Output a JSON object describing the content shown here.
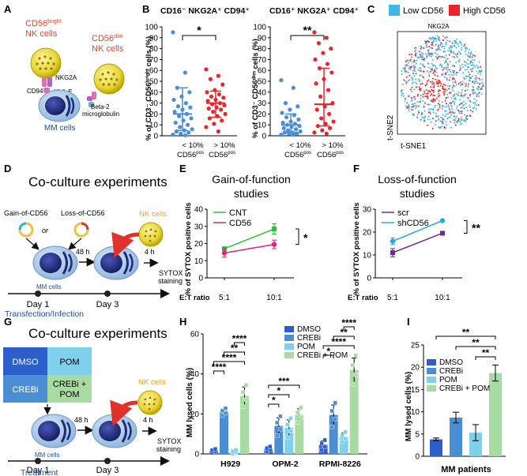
{
  "panels": {
    "A": {
      "label": "A",
      "nk_bright_line1": "CD56",
      "nk_bright_sup": "bright",
      "nk_bright_line2": "NK cells",
      "nk_dim_line1": "CD56",
      "nk_dim_sup": "dim",
      "nk_dim_line2": "NK cells",
      "nkg2a": "NKG2A",
      "cd94": "CD94",
      "hlae": "HLA-E",
      "beta2_line1": "Beta-2",
      "beta2_line2": "microglobulin",
      "mm_cells": "MM cells"
    },
    "B": {
      "label": "B",
      "ylabel_left": "% of CD3⁻ CD56ᵇʳⁱᵍʰᵗ cells (%)",
      "ylabel_right": "% of CD3⁻ CD56ᵈⁱᵐ cells (%)",
      "group1_line1": "< 10%",
      "group1_line2": "CD56",
      "group1_sup": "pos",
      "group2_line1": "> 10%",
      "group2_line2": "CD56",
      "group2_sup": "pos"
    },
    "C": {
      "label": "C",
      "legend_low": "Low CD56",
      "legend_high": "High CD56",
      "title": "NKG2A",
      "xaxis": "t-SNE1",
      "yaxis": "t-SNE2",
      "color_low": "#3fb8e8",
      "color_high": "#e8262b"
    },
    "D": {
      "label": "D",
      "title": "Co-culture experiments",
      "gain": "Gain-of-CD56",
      "loss": "Loss-of-CD56",
      "or": "or",
      "nk_cells": "NK cells",
      "mm_cells": "MM cells",
      "time1": "48 h",
      "time2": "4 h",
      "sytox1": "SYTOX",
      "sytox2": "staining",
      "day1": "Day 1",
      "day3": "Day 3",
      "caption": "Transfection/Infection"
    },
    "G": {
      "label": "G",
      "title": "Co-culture experiments",
      "box_dmso": "DMSO",
      "box_pom": "POM",
      "box_crebi": "CREBi",
      "box_combo1": "CREBi +",
      "box_combo2": "POM",
      "nk_cells": "NK cells",
      "mm_cells": "MM cells",
      "time1": "48 h",
      "time2": "4 h",
      "sytox1": "SYTOX",
      "sytox2": "staining",
      "day1": "Day 1",
      "day3": "Day 3",
      "caption": "Treatment"
    },
    "E": {
      "label": "E"
    },
    "F": {
      "label": "F"
    },
    "H": {
      "label": "H"
    },
    "I": {
      "label": "I"
    }
  },
  "chart_data": [
    {
      "id": "B_left",
      "type": "scatter",
      "title": "CD16⁻ NKG2A⁺ CD94⁺",
      "ylabel": "% of CD3⁻ CD56bright cells (%)",
      "categories": [
        "< 10% CD56pos",
        "> 10% CD56pos"
      ],
      "ylim": [
        0,
        100
      ],
      "yticks": [
        0,
        10,
        20,
        30,
        40,
        50,
        60,
        70,
        80,
        90,
        100
      ],
      "colors": [
        "#4a8fd6",
        "#e8262b"
      ],
      "significance": "*",
      "series": [
        {
          "name": "< 10% CD56pos",
          "median": 20,
          "q1": 5,
          "q3": 44,
          "points": [
            95,
            58,
            44,
            40,
            36,
            33,
            30,
            27,
            26,
            24,
            22,
            20,
            18,
            16,
            14,
            12,
            10,
            8,
            6,
            5,
            4,
            3,
            2,
            1,
            0.5
          ]
        },
        {
          "name": "> 10% CD56pos",
          "median": 30,
          "q1": 17,
          "q3": 41,
          "points": [
            61,
            55,
            52,
            47,
            42,
            40,
            38,
            36,
            35,
            33,
            32,
            30,
            29,
            28,
            26,
            25,
            24,
            22,
            20,
            18,
            16,
            14,
            11,
            8,
            4
          ]
        }
      ]
    },
    {
      "id": "B_right",
      "type": "scatter",
      "title": "CD16⁺ NKG2A⁺ CD94⁺",
      "ylabel": "% of CD3⁻ CD56dim cells (%)",
      "categories": [
        "< 10% CD56pos",
        "> 10% CD56pos"
      ],
      "ylim": [
        0,
        100
      ],
      "yticks": [
        0,
        10,
        20,
        30,
        40,
        50,
        60,
        70,
        80,
        90,
        100
      ],
      "colors": [
        "#4a8fd6",
        "#e8262b"
      ],
      "significance": "**",
      "series": [
        {
          "name": "< 10% CD56pos",
          "median": 10,
          "q1": 3,
          "q3": 20,
          "points": [
            51,
            44,
            30,
            27,
            24,
            21,
            19,
            17,
            15,
            13,
            12,
            11,
            10,
            9,
            8,
            7,
            6,
            5,
            4,
            3,
            3,
            2,
            2,
            1,
            1
          ]
        },
        {
          "name": "> 10% CD56pos",
          "median": 29,
          "q1": 9,
          "q3": 62,
          "points": [
            95,
            90,
            85,
            80,
            76,
            70,
            66,
            62,
            58,
            52,
            48,
            42,
            36,
            30,
            27,
            24,
            20,
            16,
            13,
            11,
            9,
            7,
            5,
            3,
            2
          ]
        }
      ]
    },
    {
      "id": "E",
      "type": "line",
      "title": "Gain-of-function studies",
      "title_line1": "Gain-of-function",
      "title_line2": "studies",
      "ylabel": "% of SYTOX positive cells",
      "xlabel": "E:T ratio",
      "categories": [
        "5:1",
        "10:1"
      ],
      "ylim": [
        0,
        40
      ],
      "yticks": [
        0,
        10,
        20,
        30,
        40
      ],
      "significance": "*",
      "series": [
        {
          "name": "CNT",
          "color": "#2dc13a",
          "values": [
            17,
            28.5
          ],
          "errors": [
            1,
            3
          ]
        },
        {
          "name": "CD56",
          "color": "#e8207e",
          "values": [
            14.5,
            19.5
          ],
          "errors": [
            2.5,
            2.5
          ]
        }
      ]
    },
    {
      "id": "F",
      "type": "line",
      "title": "Loss-of-function studies",
      "title_line1": "Loss-of-function",
      "title_line2": "studies",
      "ylabel": "% of SYTOX positive cells",
      "xlabel": "E:T ratio",
      "categories": [
        "5:1",
        "10:1"
      ],
      "ylim": [
        0,
        30
      ],
      "yticks": [
        0,
        10,
        20,
        30
      ],
      "significance": "**",
      "series": [
        {
          "name": "scr",
          "color": "#6a2c91",
          "values": [
            11,
            19.5
          ],
          "errors": [
            1.8,
            0.5
          ]
        },
        {
          "name": "shCD56",
          "color": "#29a8e0",
          "values": [
            16,
            25
          ],
          "errors": [
            1.5,
            0.3
          ]
        }
      ]
    },
    {
      "id": "H",
      "type": "bar",
      "ylabel": "MM lysed cells (%)",
      "categories": [
        "H929",
        "OPM-2",
        "RPMI-8226"
      ],
      "ylim": [
        0,
        60
      ],
      "yticks": [
        0,
        20,
        40,
        60
      ],
      "series": [
        {
          "name": "DMSO",
          "color": "#2c5fc9",
          "values": [
            1.5,
            2.5,
            4.5
          ],
          "errors": [
            0.8,
            1.0,
            2.0
          ]
        },
        {
          "name": "CREBi",
          "color": "#4a8fd6",
          "values": [
            21,
            14,
            19.5
          ],
          "errors": [
            1.5,
            4.0,
            5.0
          ]
        },
        {
          "name": "POM",
          "color": "#7fd0ec",
          "values": [
            1,
            13,
            8.5
          ],
          "errors": [
            0.8,
            4.0,
            2.0
          ]
        },
        {
          "name": "CREBi + POM",
          "color": "#a7dba2",
          "values": [
            29,
            19.5,
            42
          ],
          "errors": [
            4.5,
            3.0,
            6.0
          ]
        }
      ],
      "significance": [
        {
          "group": "H929",
          "pairs": [
            [
              0,
              1,
              "****"
            ],
            [
              0,
              3,
              "****"
            ],
            [
              1,
              3,
              "**"
            ],
            [
              2,
              3,
              "****"
            ]
          ]
        },
        {
          "group": "OPM-2",
          "pairs": [
            [
              0,
              1,
              "*"
            ],
            [
              0,
              2,
              "*"
            ],
            [
              0,
              3,
              "***"
            ]
          ]
        },
        {
          "group": "RPMI-8226",
          "pairs": [
            [
              0,
              1,
              "*"
            ],
            [
              0,
              3,
              "****"
            ],
            [
              1,
              3,
              "**"
            ],
            [
              2,
              3,
              "****"
            ]
          ]
        }
      ]
    },
    {
      "id": "I",
      "type": "bar",
      "ylabel": "MM lysed cells (%)",
      "xlabel": "MM patients",
      "categories": [
        "MM patients"
      ],
      "ylim": [
        0,
        25
      ],
      "yticks": [
        0,
        5,
        10,
        15,
        20,
        25
      ],
      "series": [
        {
          "name": "DMSO",
          "color": "#2c5fc9",
          "values": [
            3.8
          ],
          "errors": [
            0.3
          ]
        },
        {
          "name": "CREBi",
          "color": "#4a8fd6",
          "values": [
            8.7
          ],
          "errors": [
            1.2
          ]
        },
        {
          "name": "POM",
          "color": "#7fd0ec",
          "values": [
            5.3
          ],
          "errors": [
            1.8
          ]
        },
        {
          "name": "CREBi + POM",
          "color": "#a7dba2",
          "values": [
            18.7
          ],
          "errors": [
            1.8
          ]
        }
      ],
      "significance": [
        [
          0,
          3,
          "**"
        ],
        [
          1,
          3,
          "**"
        ],
        [
          2,
          3,
          "**"
        ]
      ]
    }
  ]
}
